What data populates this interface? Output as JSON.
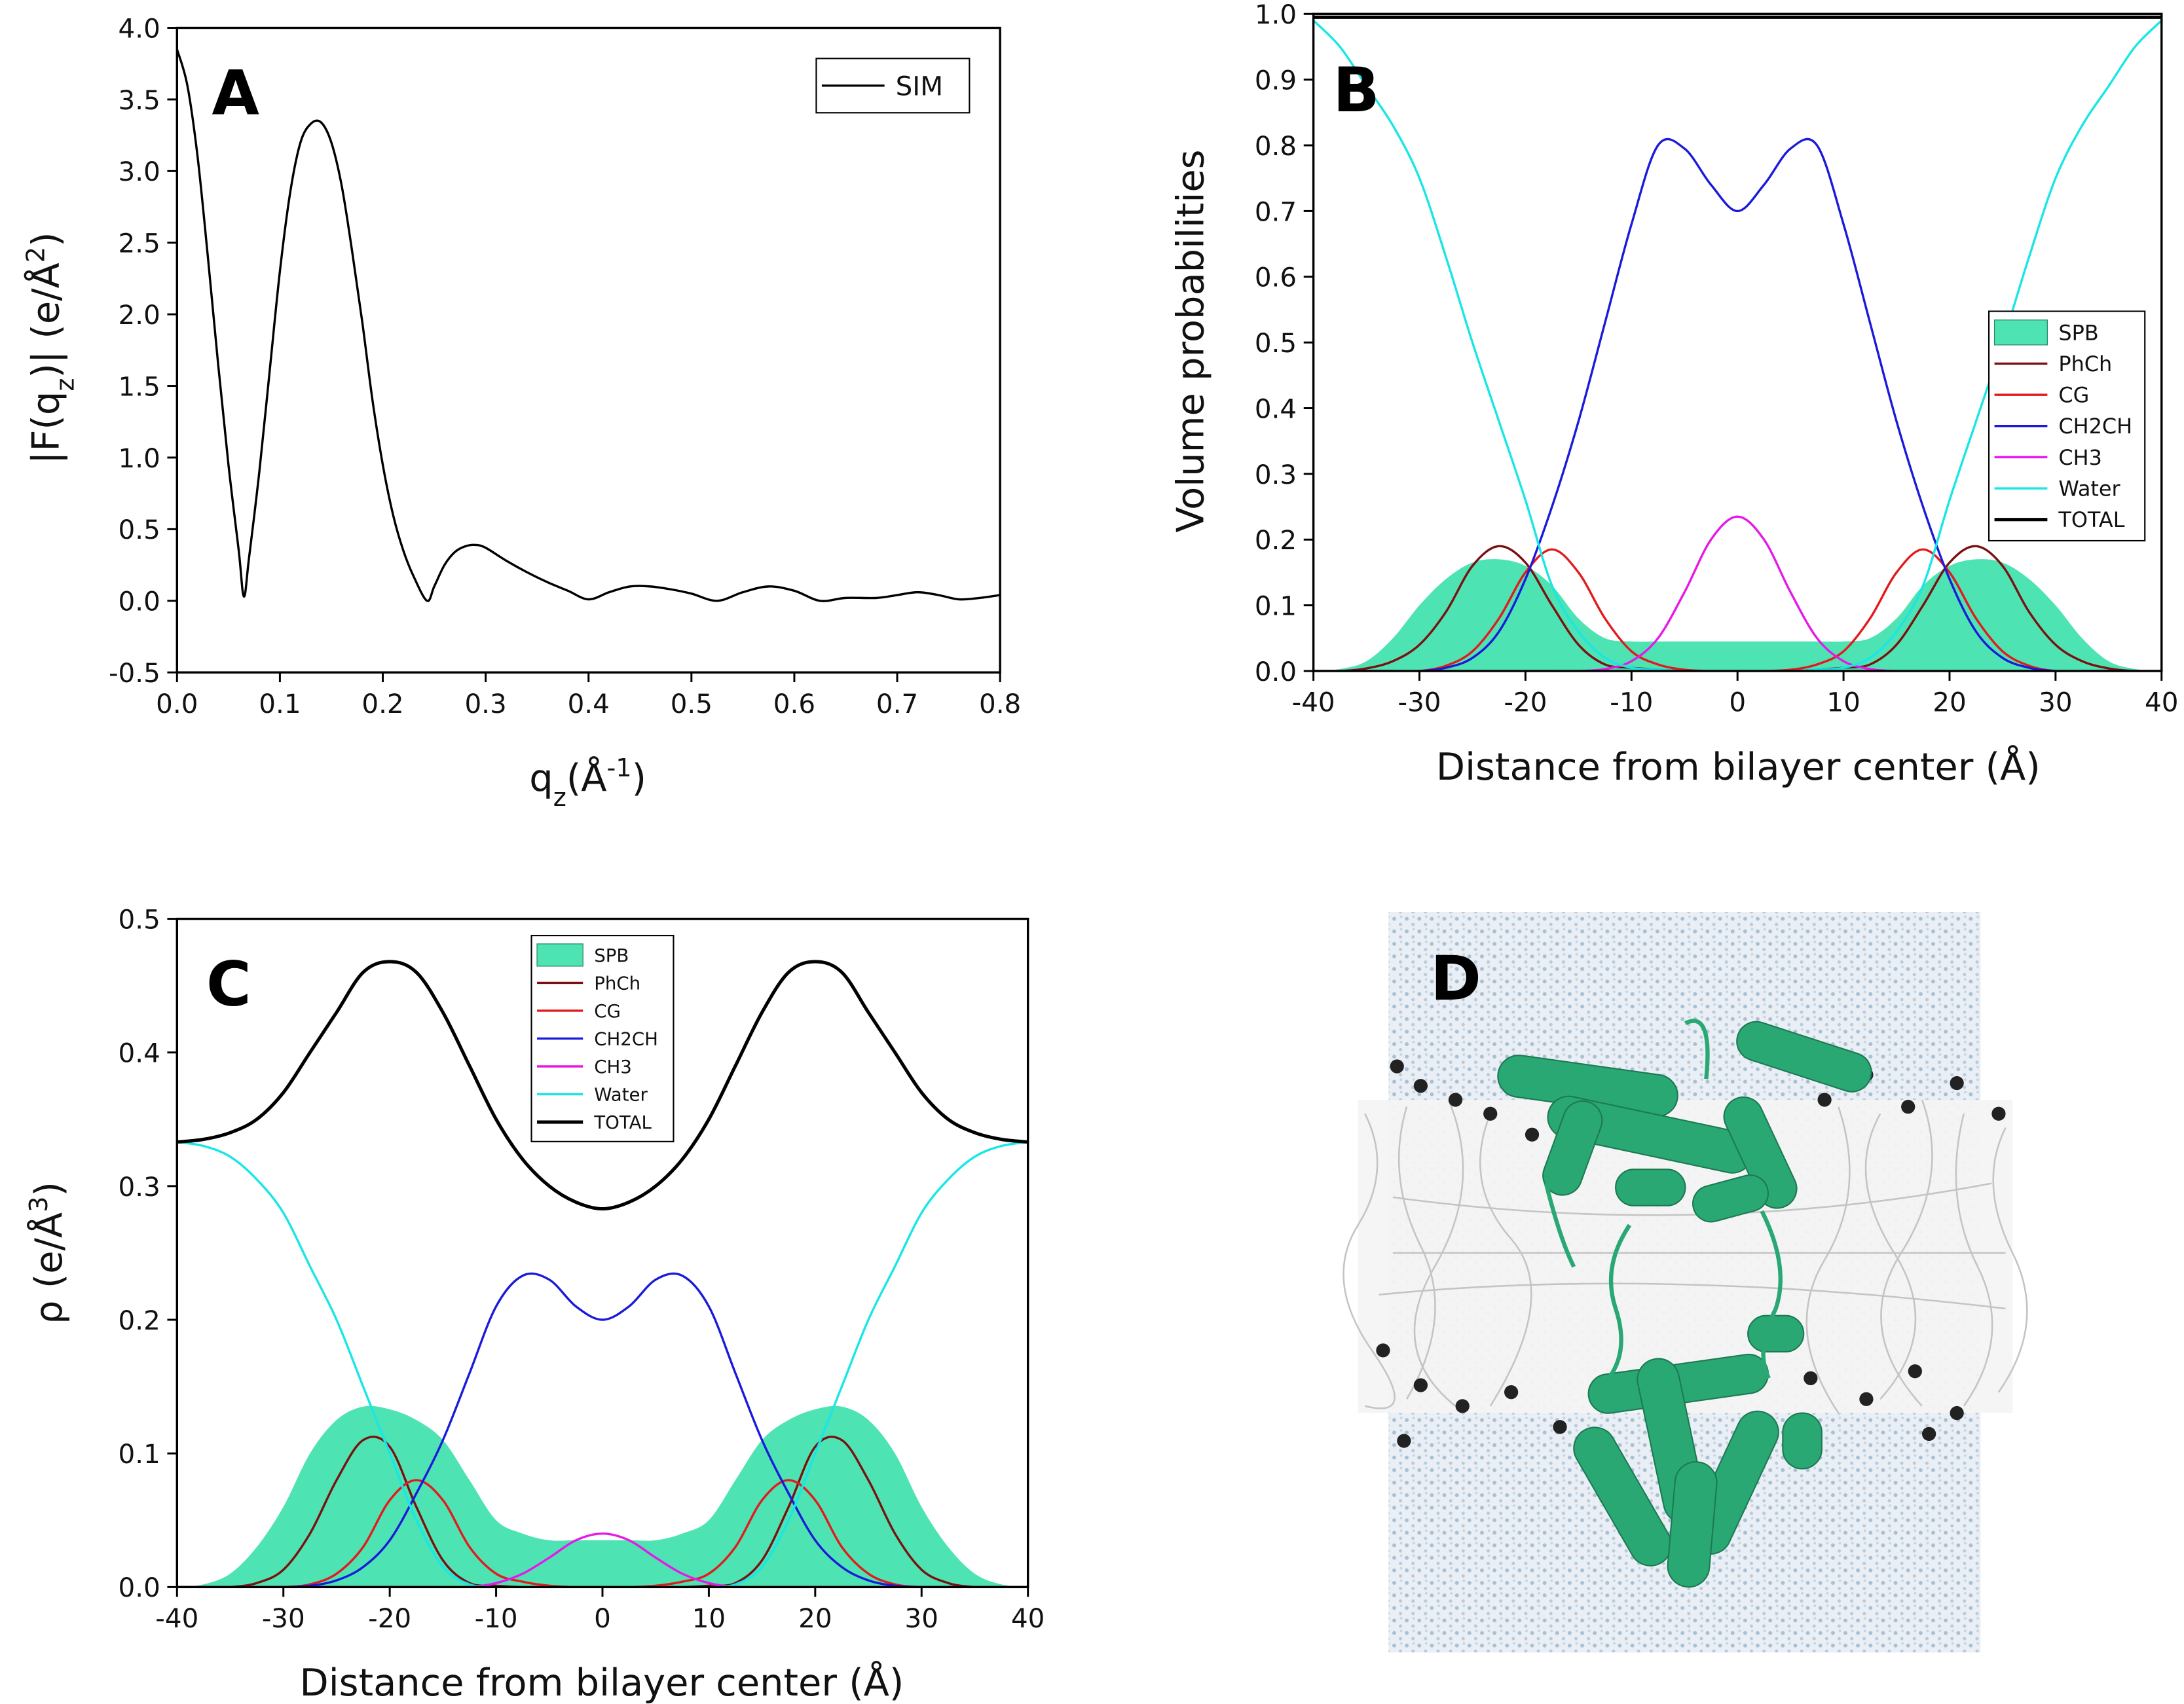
{
  "chart_data": [
    {
      "type": "line",
      "annotation": "A",
      "xlabel": [
        "q",
        "z",
        "(Å",
        "-1",
        ")"
      ],
      "ylabel": [
        "|F(q",
        "z",
        ")| (e/Å",
        "2",
        ")"
      ],
      "x": [
        0,
        0.01,
        0.02,
        0.03,
        0.04,
        0.05,
        0.06,
        0.065,
        0.07,
        0.08,
        0.09,
        0.1,
        0.11,
        0.12,
        0.13,
        0.14,
        0.15,
        0.16,
        0.17,
        0.18,
        0.19,
        0.2,
        0.21,
        0.22,
        0.23,
        0.243,
        0.25,
        0.26,
        0.27,
        0.28,
        0.29,
        0.3,
        0.32,
        0.34,
        0.36,
        0.38,
        0.4,
        0.42,
        0.44,
        0.46,
        0.48,
        0.5,
        0.525,
        0.55,
        0.575,
        0.6,
        0.625,
        0.65,
        0.68,
        0.7,
        0.72,
        0.74,
        0.76,
        0.78,
        0.8
      ],
      "series": [
        {
          "name": "SIM",
          "color": "#000000",
          "values": [
            3.85,
            3.6,
            3.1,
            2.4,
            1.65,
            0.95,
            0.35,
            0.03,
            0.3,
            0.9,
            1.6,
            2.3,
            2.85,
            3.2,
            3.33,
            3.34,
            3.2,
            2.9,
            2.45,
            1.95,
            1.4,
            0.95,
            0.6,
            0.35,
            0.17,
            0.0,
            0.1,
            0.25,
            0.34,
            0.38,
            0.39,
            0.37,
            0.28,
            0.2,
            0.13,
            0.07,
            0.01,
            0.06,
            0.1,
            0.1,
            0.08,
            0.05,
            0.0,
            0.06,
            0.1,
            0.07,
            0.0,
            0.02,
            0.02,
            0.04,
            0.06,
            0.04,
            0.01,
            0.02,
            0.04
          ]
        }
      ],
      "xlim": [
        0,
        0.8
      ],
      "ylim": [
        -0.5,
        4.0
      ],
      "xticks": [
        {
          "value": 0,
          "label": "0.0"
        },
        0.1,
        0.2,
        0.3,
        0.4,
        0.5,
        0.6,
        0.7,
        0.8
      ],
      "yticks": [
        -0.5,
        {
          "value": 0,
          "label": "0.0"
        },
        0.5,
        {
          "value": 1,
          "label": "1.0"
        },
        1.5,
        {
          "value": 2,
          "label": "2.0"
        },
        2.5,
        {
          "value": 3,
          "label": "3.0"
        },
        3.5,
        {
          "value": 4,
          "label": "4.0"
        }
      ],
      "legend": "upper right"
    },
    {
      "type": "line",
      "annotation": "B",
      "xlabel": "Distance from bilayer center (Å)",
      "ylabel": "Volume probabilities",
      "x": [
        -40,
        -37.5,
        -35,
        -32.5,
        -30,
        -27.5,
        -25,
        -22.5,
        -20,
        -17.5,
        -15,
        -12.5,
        -10,
        -7.5,
        -5,
        -2.5,
        0,
        2.5,
        5,
        7.5,
        10,
        12.5,
        15,
        17.5,
        20,
        22.5,
        25,
        27.5,
        30,
        32.5,
        35,
        37.5,
        40
      ],
      "series": [
        {
          "name": "SPB",
          "color": "#4de3b3",
          "kind": "area",
          "values": [
            0,
            0.003,
            0.015,
            0.05,
            0.1,
            0.14,
            0.165,
            0.17,
            0.16,
            0.13,
            0.08,
            0.05,
            0.045,
            0.045,
            0.045,
            0.045,
            0.045,
            0.045,
            0.045,
            0.045,
            0.045,
            0.05,
            0.08,
            0.13,
            0.16,
            0.17,
            0.165,
            0.14,
            0.1,
            0.05,
            0.015,
            0.003,
            0
          ]
        },
        {
          "name": "PhCh",
          "color": "#7a1010",
          "values": [
            0,
            0,
            0.004,
            0.015,
            0.04,
            0.09,
            0.16,
            0.19,
            0.165,
            0.1,
            0.04,
            0.01,
            0.005,
            0.002,
            0,
            0,
            0,
            0,
            0,
            0.002,
            0.005,
            0.01,
            0.04,
            0.1,
            0.165,
            0.19,
            0.16,
            0.09,
            0.04,
            0.015,
            0.004,
            0,
            0
          ]
        },
        {
          "name": "CG",
          "color": "#e31a1c",
          "values": [
            0,
            0,
            0,
            0,
            0,
            0.008,
            0.03,
            0.08,
            0.15,
            0.185,
            0.15,
            0.08,
            0.03,
            0.01,
            0.002,
            0,
            0,
            0,
            0.002,
            0.01,
            0.03,
            0.08,
            0.15,
            0.185,
            0.15,
            0.08,
            0.03,
            0.008,
            0,
            0,
            0,
            0,
            0
          ]
        },
        {
          "name": "CH2CH",
          "color": "#1a1adb",
          "values": [
            0,
            0,
            0,
            0,
            0,
            0.005,
            0.02,
            0.06,
            0.14,
            0.25,
            0.38,
            0.53,
            0.68,
            0.8,
            0.795,
            0.74,
            0.7,
            0.74,
            0.795,
            0.8,
            0.68,
            0.53,
            0.38,
            0.25,
            0.14,
            0.06,
            0.02,
            0.005,
            0,
            0,
            0,
            0,
            0
          ]
        },
        {
          "name": "CH3",
          "color": "#e619e6",
          "values": [
            0,
            0,
            0,
            0,
            0,
            0,
            0,
            0,
            0,
            0,
            0,
            0.003,
            0.015,
            0.05,
            0.12,
            0.2,
            0.235,
            0.2,
            0.12,
            0.05,
            0.015,
            0.003,
            0,
            0,
            0,
            0,
            0,
            0,
            0,
            0,
            0,
            0,
            0
          ]
        },
        {
          "name": "Water",
          "color": "#19e6e6",
          "values": [
            0.99,
            0.95,
            0.89,
            0.83,
            0.75,
            0.63,
            0.5,
            0.38,
            0.26,
            0.13,
            0.06,
            0.02,
            0.005,
            0.002,
            0,
            0,
            0,
            0,
            0,
            0.002,
            0.005,
            0.02,
            0.06,
            0.13,
            0.26,
            0.38,
            0.5,
            0.63,
            0.75,
            0.83,
            0.89,
            0.95,
            0.99
          ]
        },
        {
          "name": "TOTAL",
          "color": "#000000",
          "values": [
            0.995,
            0.995,
            0.995,
            0.995,
            0.995,
            0.995,
            0.995,
            0.995,
            0.995,
            0.995,
            0.995,
            0.995,
            0.995,
            0.995,
            0.995,
            0.995,
            0.995,
            0.995,
            0.995,
            0.995,
            0.995,
            0.995,
            0.995,
            0.995,
            0.995,
            0.995,
            0.995,
            0.995,
            0.995,
            0.995,
            0.995,
            0.995,
            0.995
          ]
        }
      ],
      "xlim": [
        -40,
        40
      ],
      "ylim": [
        0,
        1.0
      ],
      "xticks": [
        -40,
        -30,
        -20,
        -10,
        0,
        10,
        20,
        30,
        40
      ],
      "yticks": [
        {
          "value": 0,
          "label": "0.0"
        },
        0.1,
        0.2,
        0.3,
        0.4,
        0.5,
        0.6,
        0.7,
        0.8,
        0.9,
        {
          "value": 1,
          "label": "1.0"
        }
      ],
      "legend": "center right"
    },
    {
      "type": "line",
      "annotation": "C",
      "xlabel": "Distance from bilayer center (Å)",
      "ylabel": [
        "ρ (e/Å",
        "3",
        ")"
      ],
      "x": [
        -40,
        -37.5,
        -35,
        -32.5,
        -30,
        -27.5,
        -25,
        -22.5,
        -20,
        -17.5,
        -15,
        -12.5,
        -10,
        -7.5,
        -5,
        -2.5,
        0,
        2.5,
        5,
        7.5,
        10,
        12.5,
        15,
        17.5,
        20,
        22.5,
        25,
        27.5,
        30,
        32.5,
        35,
        37.5,
        40
      ],
      "series": [
        {
          "name": "SPB",
          "color": "#4de3b3",
          "kind": "area",
          "values": [
            0,
            0.002,
            0.01,
            0.03,
            0.06,
            0.1,
            0.125,
            0.135,
            0.133,
            0.125,
            0.11,
            0.08,
            0.05,
            0.04,
            0.035,
            0.035,
            0.035,
            0.035,
            0.035,
            0.04,
            0.05,
            0.08,
            0.11,
            0.125,
            0.133,
            0.135,
            0.125,
            0.1,
            0.06,
            0.03,
            0.01,
            0.002,
            0
          ]
        },
        {
          "name": "PhCh",
          "color": "#7a1010",
          "values": [
            0,
            0,
            0,
            0.003,
            0.013,
            0.04,
            0.08,
            0.11,
            0.105,
            0.06,
            0.02,
            0.003,
            0.001,
            0,
            0,
            0,
            0,
            0,
            0,
            0,
            0.001,
            0.003,
            0.02,
            0.06,
            0.105,
            0.11,
            0.08,
            0.04,
            0.013,
            0.003,
            0,
            0,
            0
          ]
        },
        {
          "name": "CG",
          "color": "#e31a1c",
          "values": [
            0,
            0,
            0,
            0,
            0,
            0.002,
            0.01,
            0.03,
            0.065,
            0.08,
            0.065,
            0.03,
            0.01,
            0.004,
            0.001,
            0,
            0,
            0,
            0.001,
            0.004,
            0.01,
            0.03,
            0.065,
            0.08,
            0.065,
            0.03,
            0.01,
            0.002,
            0,
            0,
            0,
            0,
            0
          ]
        },
        {
          "name": "CH2CH",
          "color": "#1a1adb",
          "values": [
            0,
            0,
            0,
            0,
            0,
            0.001,
            0.005,
            0.015,
            0.035,
            0.07,
            0.11,
            0.16,
            0.21,
            0.233,
            0.23,
            0.21,
            0.2,
            0.21,
            0.23,
            0.233,
            0.21,
            0.16,
            0.11,
            0.07,
            0.035,
            0.015,
            0.005,
            0.001,
            0,
            0,
            0,
            0,
            0
          ]
        },
        {
          "name": "CH3",
          "color": "#e619e6",
          "values": [
            0,
            0,
            0,
            0,
            0,
            0,
            0,
            0,
            0,
            0,
            0,
            0,
            0.003,
            0.01,
            0.022,
            0.035,
            0.04,
            0.035,
            0.022,
            0.01,
            0.003,
            0,
            0,
            0,
            0,
            0,
            0,
            0,
            0,
            0,
            0,
            0,
            0
          ]
        },
        {
          "name": "Water",
          "color": "#19e6e6",
          "values": [
            0.333,
            0.33,
            0.322,
            0.305,
            0.28,
            0.24,
            0.2,
            0.15,
            0.1,
            0.05,
            0.015,
            0.002,
            0,
            0,
            0,
            0,
            0,
            0,
            0,
            0,
            0,
            0.002,
            0.015,
            0.05,
            0.1,
            0.15,
            0.2,
            0.24,
            0.28,
            0.305,
            0.322,
            0.33,
            0.333
          ]
        },
        {
          "name": "TOTAL",
          "color": "#000000",
          "values": [
            0.333,
            0.335,
            0.34,
            0.35,
            0.37,
            0.4,
            0.43,
            0.46,
            0.468,
            0.46,
            0.43,
            0.39,
            0.35,
            0.32,
            0.3,
            0.288,
            0.283,
            0.288,
            0.3,
            0.32,
            0.35,
            0.39,
            0.43,
            0.46,
            0.468,
            0.46,
            0.43,
            0.4,
            0.37,
            0.35,
            0.34,
            0.335,
            0.333
          ]
        }
      ],
      "xlim": [
        -40,
        40
      ],
      "ylim": [
        0,
        0.5
      ],
      "xticks": [
        -40,
        -30,
        -20,
        -10,
        0,
        10,
        20,
        30,
        40
      ],
      "yticks": [
        {
          "value": 0,
          "label": "0.0"
        },
        0.1,
        0.2,
        0.3,
        0.4,
        0.5
      ],
      "legend": "upper center"
    }
  ],
  "panel_d": {
    "label": "D"
  }
}
